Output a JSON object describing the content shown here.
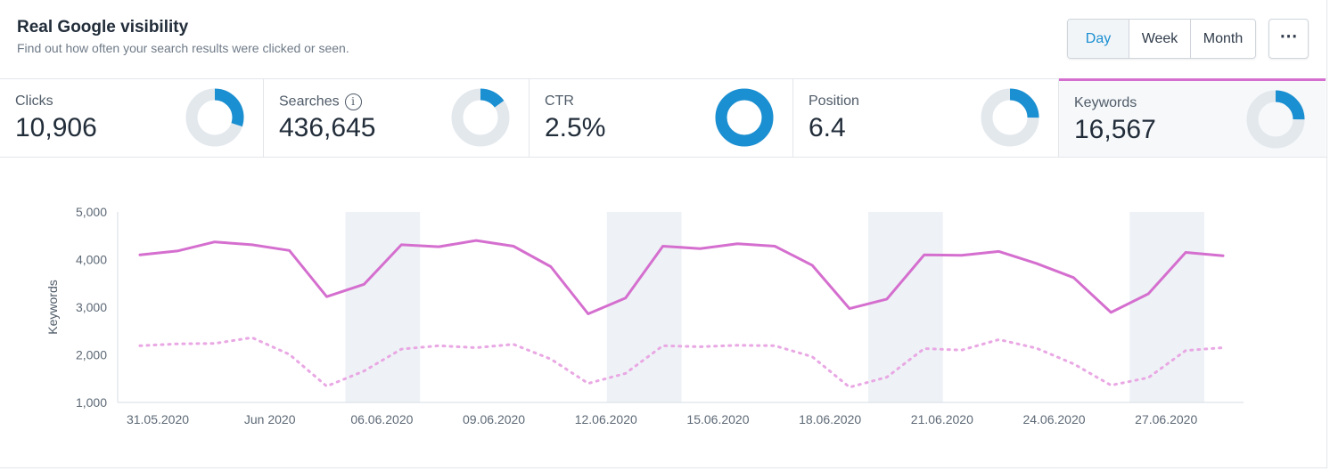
{
  "header": {
    "title": "Real Google visibility",
    "subtitle": "Find out how often your search results were clicked or seen."
  },
  "period": {
    "options": [
      "Day",
      "Week",
      "Month"
    ],
    "selected": "Day",
    "more_label": "⋯"
  },
  "metrics": [
    {
      "label": "Clicks",
      "value": "10,906",
      "donut_fraction": 0.3,
      "info": false,
      "selected": false
    },
    {
      "label": "Searches",
      "value": "436,645",
      "donut_fraction": 0.15,
      "info": true,
      "info_label": "i",
      "selected": false
    },
    {
      "label": "CTR",
      "value": "2.5%",
      "donut_fraction": 1.0,
      "info": false,
      "selected": false
    },
    {
      "label": "Position",
      "value": "6.4",
      "donut_fraction": 0.25,
      "info": false,
      "selected": false
    },
    {
      "label": "Keywords",
      "value": "16,567",
      "donut_fraction": 0.25,
      "info": false,
      "selected": true
    }
  ],
  "colors": {
    "accent_blue": "#1a8fd1",
    "donut_track": "#e3e8ed",
    "series_pink": "#d56fcf",
    "series_pink_dotted": "#e9a8e4",
    "weekend_band": "#eef2f6",
    "axis": "#d7dde3"
  },
  "chart_data": {
    "type": "line",
    "ylabel": "Keywords",
    "xlabel": "",
    "ylim": [
      1000,
      5000
    ],
    "yticks": [
      "5,000",
      "4,000",
      "3,000",
      "2,000",
      "1,000"
    ],
    "ytick_values": [
      5000,
      4000,
      3000,
      2000,
      1000
    ],
    "x": [
      "31.05.2020",
      "01.06.2020",
      "02.06.2020",
      "03.06.2020",
      "04.06.2020",
      "05.06.2020",
      "06.06.2020",
      "07.06.2020",
      "08.06.2020",
      "09.06.2020",
      "10.06.2020",
      "11.06.2020",
      "12.06.2020",
      "13.06.2020",
      "14.06.2020",
      "15.06.2020",
      "16.06.2020",
      "17.06.2020",
      "18.06.2020",
      "19.06.2020",
      "20.06.2020",
      "21.06.2020",
      "22.06.2020",
      "23.06.2020",
      "24.06.2020",
      "25.06.2020",
      "26.06.2020",
      "27.06.2020",
      "28.06.2020",
      "29.06.2020"
    ],
    "xtick_labels": [
      {
        "index": 0,
        "label": "31.05.2020"
      },
      {
        "index": 3,
        "label": "Jun 2020"
      },
      {
        "index": 6,
        "label": "06.06.2020"
      },
      {
        "index": 9,
        "label": "09.06.2020"
      },
      {
        "index": 12,
        "label": "12.06.2020"
      },
      {
        "index": 15,
        "label": "15.06.2020"
      },
      {
        "index": 18,
        "label": "18.06.2020"
      },
      {
        "index": 21,
        "label": "21.06.2020"
      },
      {
        "index": 24,
        "label": "24.06.2020"
      },
      {
        "index": 27,
        "label": "27.06.2020"
      }
    ],
    "weekend_bands": [
      [
        5.5,
        7.5
      ],
      [
        12.5,
        14.5
      ],
      [
        19.5,
        21.5
      ],
      [
        26.5,
        28.5
      ]
    ],
    "series": [
      {
        "style": "solid",
        "values": [
          4100,
          4180,
          4370,
          4310,
          4190,
          3220,
          3480,
          4310,
          4270,
          4400,
          4280,
          3850,
          2860,
          3190,
          4280,
          4230,
          4330,
          4280,
          3880,
          2970,
          3170,
          4100,
          4090,
          4170,
          3920,
          3620,
          2890,
          3280,
          4150,
          4080
        ]
      },
      {
        "style": "dotted",
        "values": [
          2190,
          2230,
          2240,
          2360,
          2010,
          1340,
          1660,
          2120,
          2190,
          2150,
          2220,
          1910,
          1400,
          1610,
          2190,
          2170,
          2200,
          2190,
          1960,
          1320,
          1530,
          2130,
          2100,
          2320,
          2140,
          1810,
          1360,
          1520,
          2090,
          2150
        ]
      }
    ],
    "grid": false,
    "legend": "none"
  }
}
